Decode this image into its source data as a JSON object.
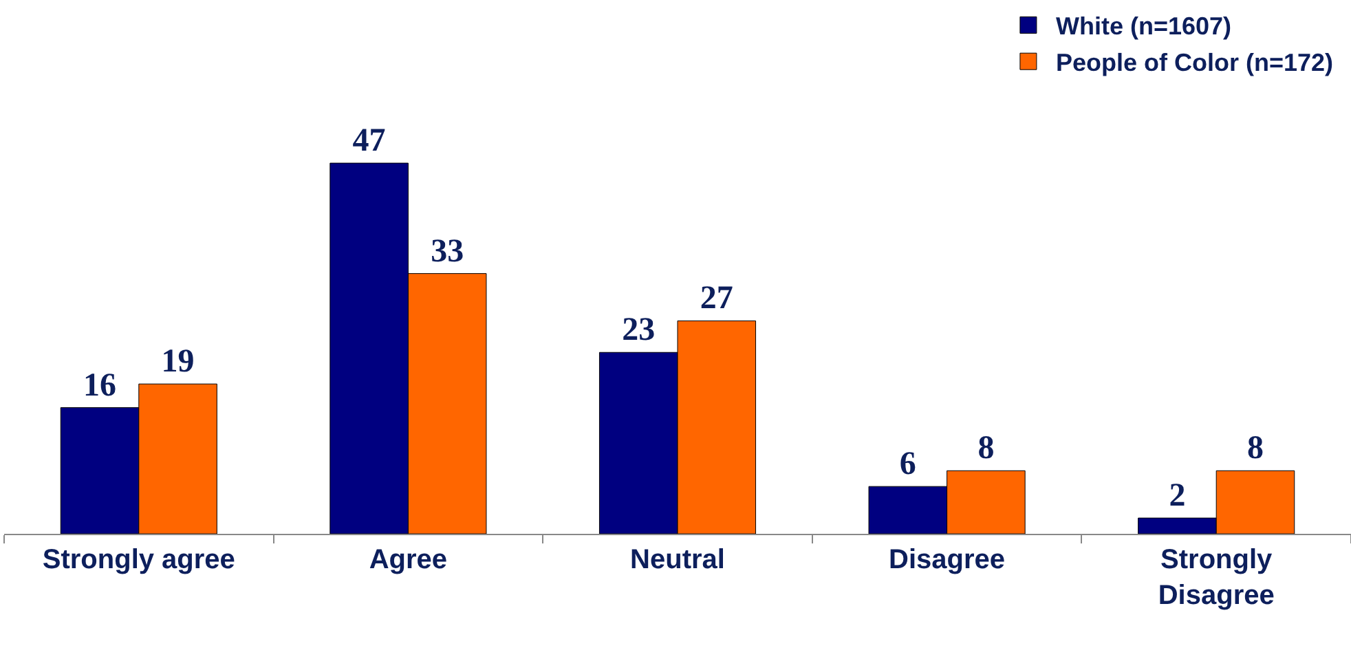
{
  "chart_data": {
    "type": "bar",
    "categories": [
      "Strongly agree",
      "Agree",
      "Neutral",
      "Disagree",
      "Strongly Disagree"
    ],
    "series": [
      {
        "name": "White (n=1607)",
        "color": "#000080",
        "values": [
          16,
          47,
          23,
          6,
          2
        ]
      },
      {
        "name": "People of Color (n=172)",
        "color": "#ff6600",
        "values": [
          19,
          33,
          27,
          8,
          8
        ]
      }
    ],
    "data_labels": true,
    "legend": "top right"
  }
}
